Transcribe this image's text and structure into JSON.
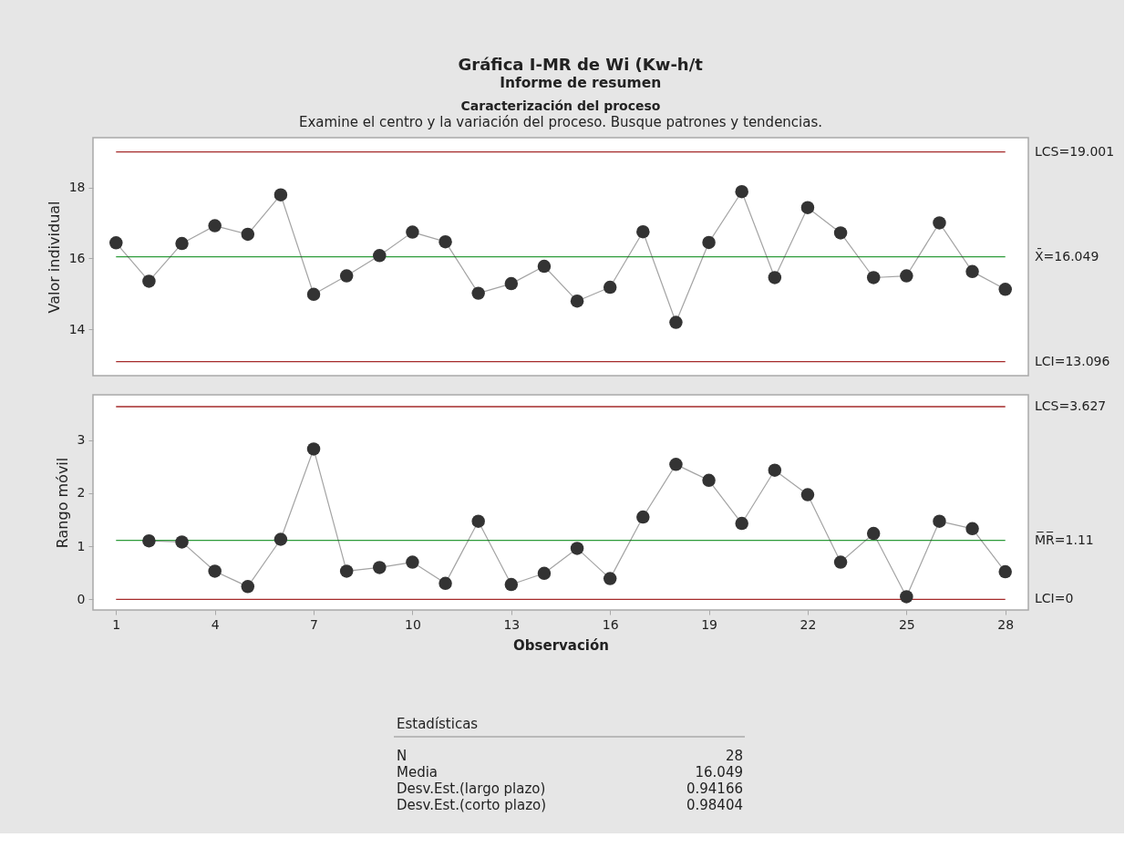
{
  "chart_data": [
    {
      "type": "line",
      "title": "Gráfica I-MR de Wi (Kw-h/t",
      "subtitle": "Informe de resumen",
      "annotations": [
        "Caracterización del proceso",
        "Examine el centro y la variación del proceso. Busque patrones y tendencias."
      ],
      "ylabel": "Valor individual",
      "x": [
        1,
        2,
        3,
        4,
        5,
        6,
        7,
        8,
        9,
        10,
        11,
        12,
        13,
        14,
        15,
        16,
        17,
        18,
        19,
        20,
        21,
        22,
        23,
        24,
        25,
        26,
        27,
        28
      ],
      "values": [
        16.44,
        15.36,
        16.42,
        16.92,
        16.68,
        17.79,
        14.99,
        15.51,
        16.08,
        16.74,
        16.47,
        15.02,
        15.29,
        15.78,
        14.8,
        15.19,
        16.75,
        14.2,
        16.45,
        17.88,
        15.46,
        17.43,
        16.72,
        15.46,
        15.51,
        17.0,
        15.63,
        15.13
      ],
      "color": "#333333",
      "marker": "circle",
      "line_style": "solid",
      "xlim": [
        0.3,
        28.7
      ],
      "ylim": [
        12.7,
        19.4
      ],
      "yticks": [
        14,
        16,
        18
      ],
      "tick_labels": "y",
      "ref_lines": [
        {
          "axis": "y",
          "value": 19.001,
          "label": "LCS=19.001",
          "color": "#a52a2a"
        },
        {
          "axis": "y",
          "value": 16.049,
          "label": "X̄=16.049",
          "color": "#2e9b3a"
        },
        {
          "axis": "y",
          "value": 13.096,
          "label": "LCI=13.096",
          "color": "#a52a2a"
        }
      ]
    },
    {
      "type": "line",
      "xlabel": "Observación",
      "ylabel": "Rango móvil",
      "x": [
        2,
        3,
        4,
        5,
        6,
        7,
        8,
        9,
        10,
        11,
        12,
        13,
        14,
        15,
        16,
        17,
        18,
        19,
        20,
        21,
        22,
        23,
        24,
        25,
        26,
        27,
        28
      ],
      "values": [
        1.1,
        1.08,
        0.53,
        0.24,
        1.13,
        2.83,
        0.53,
        0.6,
        0.7,
        0.3,
        1.47,
        0.28,
        0.49,
        0.96,
        0.39,
        1.55,
        2.54,
        2.24,
        1.43,
        2.43,
        1.97,
        0.7,
        1.24,
        0.05,
        1.47,
        1.33,
        0.52
      ],
      "color": "#333333",
      "marker": "circle",
      "line_style": "solid",
      "xlim": [
        0.3,
        28.7
      ],
      "ylim": [
        -0.2,
        3.85
      ],
      "xticks": [
        1,
        4,
        7,
        10,
        13,
        16,
        19,
        22,
        25,
        28
      ],
      "yticks": [
        0,
        1,
        2,
        3
      ],
      "ref_lines": [
        {
          "axis": "y",
          "value": 3.627,
          "label": "LCS=3.627",
          "color": "#a52a2a"
        },
        {
          "axis": "y",
          "value": 1.11,
          "label": "M̅R̅=1.11",
          "color": "#2e9b3a"
        },
        {
          "axis": "y",
          "value": 0,
          "label": "LCI=0",
          "color": "#a52a2a"
        }
      ]
    },
    {
      "type": "other",
      "title": "Estadísticas",
      "annotations": [
        "N",
        "28",
        "Media",
        "16.049",
        "Desv.Est.(largo plazo)",
        "0.94166",
        "Desv.Est.(corto plazo)",
        "0.98404"
      ]
    }
  ]
}
